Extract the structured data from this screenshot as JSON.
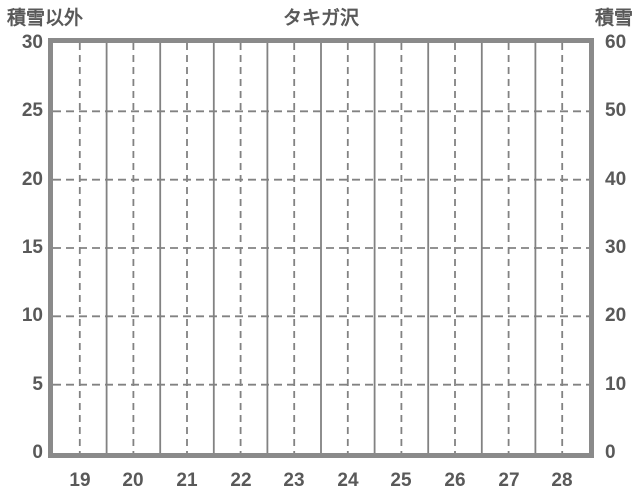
{
  "chart_data": {
    "type": "line",
    "title": "タキガ沢",
    "left_axis": {
      "label": "積雪以外",
      "ticks": [
        30,
        25,
        20,
        15,
        10,
        5,
        0
      ],
      "range": [
        0,
        30
      ]
    },
    "right_axis": {
      "label": "積雪",
      "ticks": [
        60,
        50,
        40,
        30,
        20,
        10,
        0
      ],
      "range": [
        0,
        60
      ]
    },
    "x_axis": {
      "tick_labels": [
        "19",
        "20",
        "21",
        "22",
        "23",
        "24",
        "25",
        "26",
        "27",
        "28"
      ]
    },
    "series": [],
    "grid": {
      "vertical_solid": "at day boundaries",
      "vertical_dashed": "at day centers",
      "horizontal_dashed": "every 5 left-axis units"
    },
    "legend_position": "none",
    "colors": {
      "text": "#595959",
      "border": "#8a8a8a",
      "gridline": "#828282",
      "background": "#ffffff"
    }
  }
}
